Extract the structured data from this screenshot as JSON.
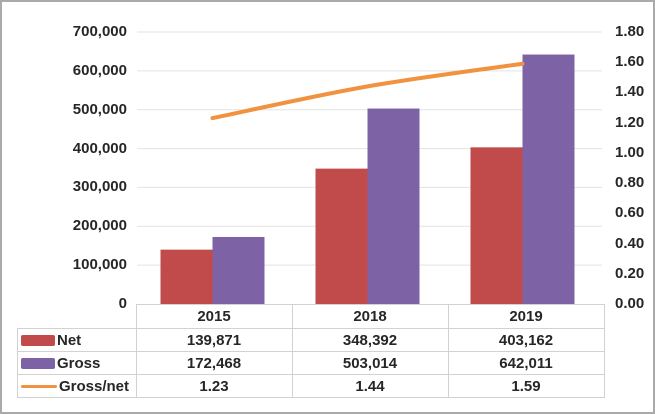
{
  "chart_data": {
    "type": "bar",
    "subtype": "combo-bar-line-dual-axis",
    "title": "",
    "categories": [
      "2015",
      "2018",
      "2019"
    ],
    "series": [
      {
        "name": "Net",
        "kind": "bar",
        "axis": "left",
        "color": "#c14a4a",
        "values": [
          139871,
          348392,
          403162
        ],
        "labels": [
          "139,871",
          "348,392",
          "403,162"
        ]
      },
      {
        "name": "Gross",
        "kind": "bar",
        "axis": "left",
        "color": "#7d63a5",
        "values": [
          172468,
          503014,
          642011
        ],
        "labels": [
          "172,468",
          "503,014",
          "642,011"
        ]
      },
      {
        "name": "Gross/net",
        "kind": "line",
        "axis": "right",
        "color": "#f0923f",
        "values": [
          1.23,
          1.44,
          1.59
        ],
        "labels": [
          "1.23",
          "1.44",
          "1.59"
        ]
      }
    ],
    "left_axis": {
      "min": 0,
      "max": 700000,
      "step": 100000,
      "tick_labels": [
        "0",
        "100,000",
        "200,000",
        "300,000",
        "400,000",
        "500,000",
        "600,000",
        "700,000"
      ]
    },
    "right_axis": {
      "min": 0,
      "max": 1.8,
      "step": 0.2,
      "tick_labels": [
        "0.00",
        "0.20",
        "0.40",
        "0.60",
        "0.80",
        "1.00",
        "1.20",
        "1.40",
        "1.60",
        "1.80"
      ]
    },
    "grid": true,
    "legend_position": "data-table-left-column",
    "colors": {
      "gridline": "#e3e3e3",
      "table_border": "#d2d2d2",
      "text": "#262626",
      "frame_border": "#aaaaaa",
      "background": "#ffffff"
    }
  }
}
